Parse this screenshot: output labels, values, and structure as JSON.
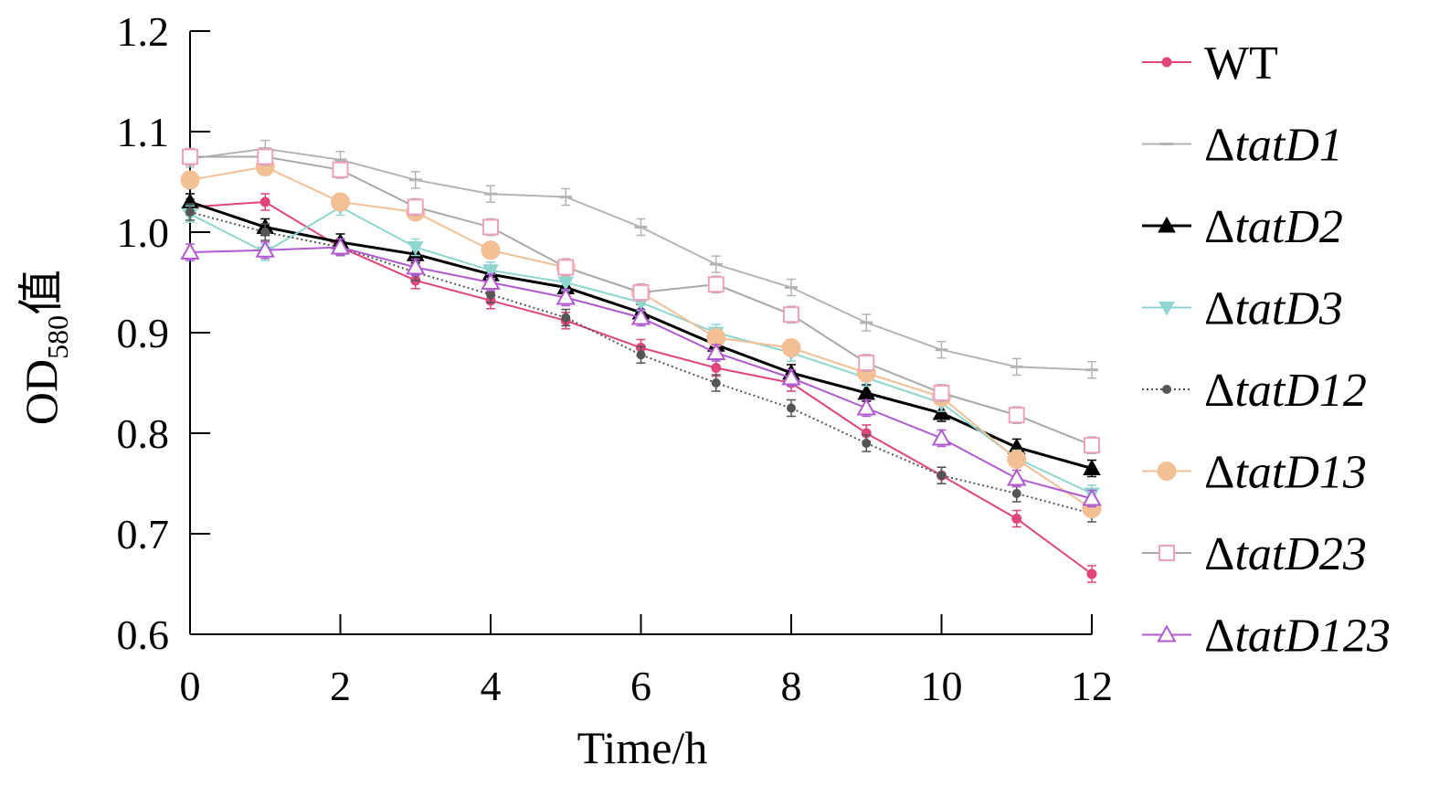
{
  "chart_data": {
    "type": "line",
    "x": [
      0,
      1,
      2,
      3,
      4,
      5,
      6,
      7,
      8,
      9,
      10,
      11,
      12
    ],
    "xlabel": "Time/h",
    "ylabel": {
      "main": "OD",
      "sub": "580",
      "suffix": "值"
    },
    "xlim": [
      0,
      12
    ],
    "ylim": [
      0.6,
      1.2
    ],
    "x_ticks": [
      "0",
      "2",
      "4",
      "6",
      "8",
      "10",
      "12"
    ],
    "y_ticks": [
      "0.6",
      "0.7",
      "0.8",
      "0.9",
      "1.0",
      "1.1",
      "1.2"
    ],
    "grid": false,
    "legend_position": "right",
    "series": [
      {
        "name": "WT",
        "prefix": "",
        "italic": false,
        "color": "#e0457b",
        "marker": "circle",
        "values": [
          1.025,
          1.03,
          0.985,
          0.952,
          0.932,
          0.912,
          0.885,
          0.865,
          0.85,
          0.8,
          0.758,
          0.715,
          0.66
        ]
      },
      {
        "name": "tatD1",
        "prefix": "Δ",
        "italic": true,
        "color": "#b4b4b4",
        "marker": "dash",
        "values": [
          1.073,
          1.083,
          1.072,
          1.052,
          1.038,
          1.035,
          1.005,
          0.968,
          0.945,
          0.91,
          0.883,
          0.866,
          0.863
        ]
      },
      {
        "name": "tatD2",
        "prefix": "Δ",
        "italic": true,
        "color": "#000000",
        "marker": "triangle-filled",
        "values": [
          1.03,
          1.005,
          0.99,
          0.978,
          0.958,
          0.945,
          0.92,
          0.888,
          0.86,
          0.84,
          0.82,
          0.786,
          0.765
        ]
      },
      {
        "name": "tatD3",
        "prefix": "Δ",
        "italic": true,
        "color": "#8ed6cf",
        "marker": "triangle-down-filled",
        "values": [
          1.018,
          0.98,
          1.025,
          0.985,
          0.962,
          0.95,
          0.93,
          0.9,
          0.88,
          0.855,
          0.83,
          0.775,
          0.74
        ]
      },
      {
        "name": "tatD12",
        "prefix": "Δ",
        "italic": true,
        "color": "#555555",
        "marker": "small-circle",
        "dotted": true,
        "values": [
          1.02,
          1.0,
          0.985,
          0.96,
          0.938,
          0.915,
          0.878,
          0.85,
          0.825,
          0.79,
          0.758,
          0.74,
          0.72
        ]
      },
      {
        "name": "tatD13",
        "prefix": "Δ",
        "italic": true,
        "color": "#f3bf95",
        "marker": "big-circle",
        "values": [
          1.052,
          1.065,
          1.03,
          1.02,
          0.982,
          0.965,
          0.94,
          0.895,
          0.885,
          0.86,
          0.836,
          0.774,
          0.725
        ]
      },
      {
        "name": "tatD23",
        "prefix": "Δ",
        "italic": true,
        "color": "#a8a8a8",
        "marker": "square-open",
        "alt_color": "#f0a0c0",
        "values": [
          1.075,
          1.075,
          1.062,
          1.025,
          1.005,
          0.965,
          0.94,
          0.948,
          0.918,
          0.87,
          0.84,
          0.818,
          0.788
        ]
      },
      {
        "name": "tatD123",
        "prefix": "Δ",
        "italic": true,
        "color": "#b05ad0",
        "marker": "triangle-open",
        "values": [
          0.98,
          0.982,
          0.985,
          0.965,
          0.95,
          0.935,
          0.915,
          0.88,
          0.855,
          0.825,
          0.795,
          0.755,
          0.735
        ]
      }
    ]
  }
}
